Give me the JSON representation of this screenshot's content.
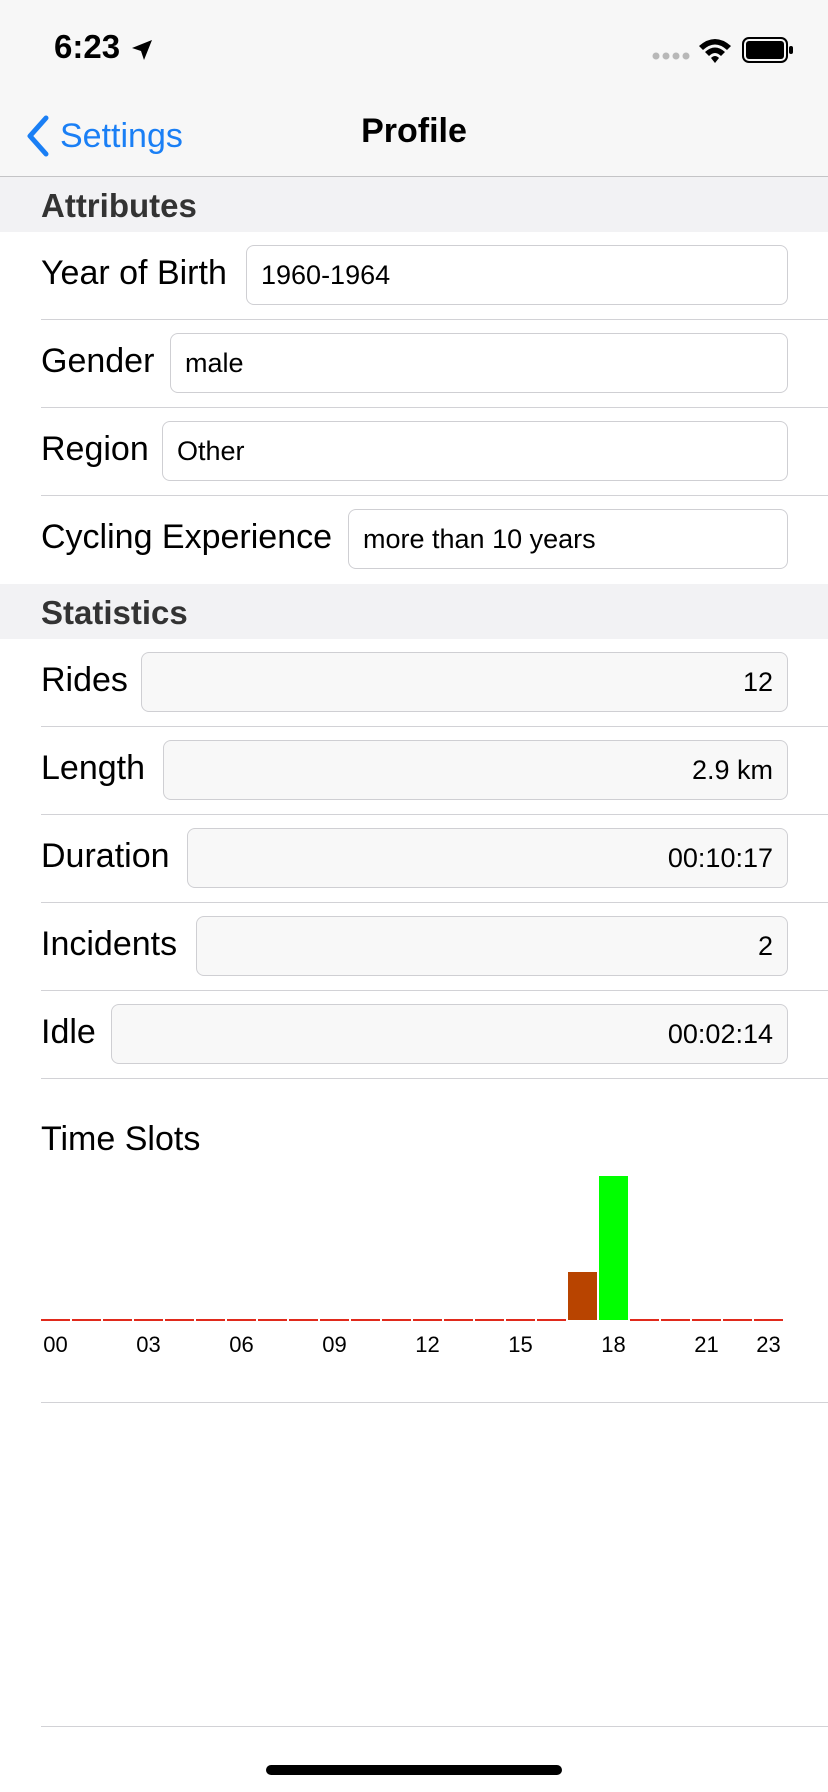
{
  "status_bar": {
    "time": "6:23"
  },
  "nav": {
    "back_label": "Settings",
    "title": "Profile"
  },
  "sections": {
    "attributes": "Attributes",
    "statistics": "Statistics"
  },
  "attributes": [
    {
      "label": "Year of Birth",
      "value": "1960-1964"
    },
    {
      "label": "Gender",
      "value": "male"
    },
    {
      "label": "Region",
      "value": "Other"
    },
    {
      "label": "Cycling Experience",
      "value": "more than 10 years"
    }
  ],
  "statistics": [
    {
      "label": "Rides",
      "value": "12"
    },
    {
      "label": "Length",
      "value": "2.9 km"
    },
    {
      "label": "Duration",
      "value": "00:10:17"
    },
    {
      "label": "Incidents",
      "value": "2"
    },
    {
      "label": "Idle",
      "value": "00:02:14"
    }
  ],
  "time_slots_label": "Time Slots",
  "chart_data": {
    "type": "bar",
    "title": "Time Slots",
    "categories": [
      "00",
      "01",
      "02",
      "03",
      "04",
      "05",
      "06",
      "07",
      "08",
      "09",
      "10",
      "11",
      "12",
      "13",
      "14",
      "15",
      "16",
      "17",
      "18",
      "19",
      "20",
      "21",
      "22",
      "23"
    ],
    "tick_labels": [
      "00",
      "03",
      "06",
      "09",
      "12",
      "15",
      "18",
      "21",
      "23"
    ],
    "values": [
      0,
      0,
      0,
      0,
      0,
      0,
      0,
      0,
      0,
      0,
      0,
      0,
      0,
      0,
      0,
      0,
      0,
      3,
      9,
      0,
      0,
      0,
      0,
      0
    ],
    "bar_colors": {
      "zero": "#e02a1c",
      "low": "#b84400",
      "high": "#00ff00"
    },
    "ylim": [
      0,
      9
    ],
    "grid": false,
    "legend": "none"
  }
}
